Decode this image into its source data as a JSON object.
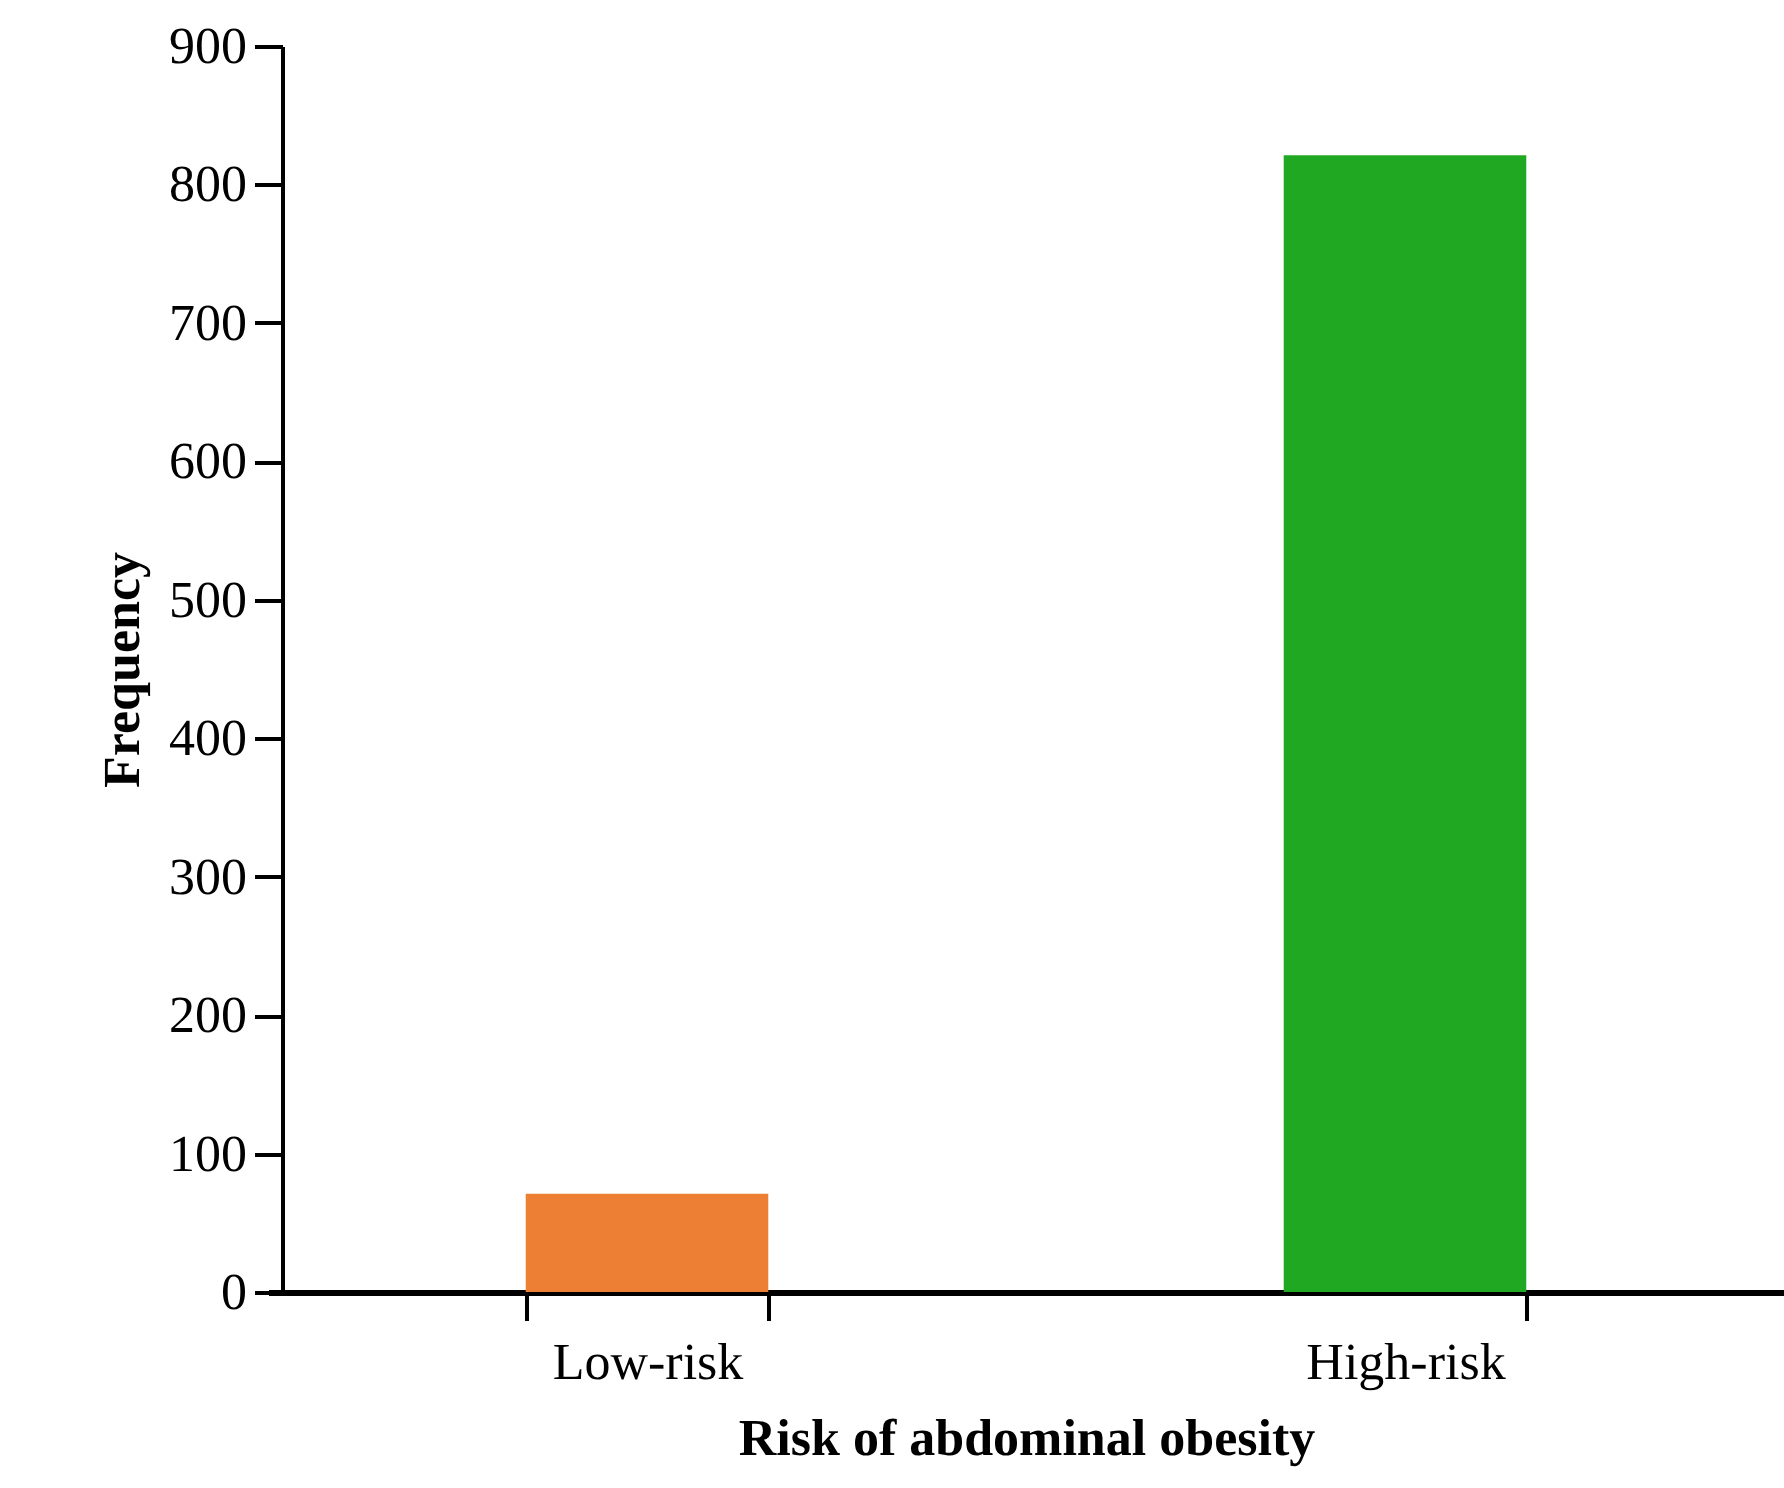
{
  "chart_data": {
    "type": "bar",
    "xlabel": "Risk of abdominal obesity",
    "ylabel": "Frequency",
    "categories": [
      "Low-risk",
      "High-risk"
    ],
    "values": [
      71,
      821
    ],
    "colors": [
      "#ec7f33",
      "#20a822"
    ],
    "ylim": [
      0,
      900
    ],
    "yticks": [
      0,
      100,
      200,
      300,
      400,
      500,
      600,
      700,
      800,
      900
    ],
    "grid": false,
    "legend": false
  }
}
